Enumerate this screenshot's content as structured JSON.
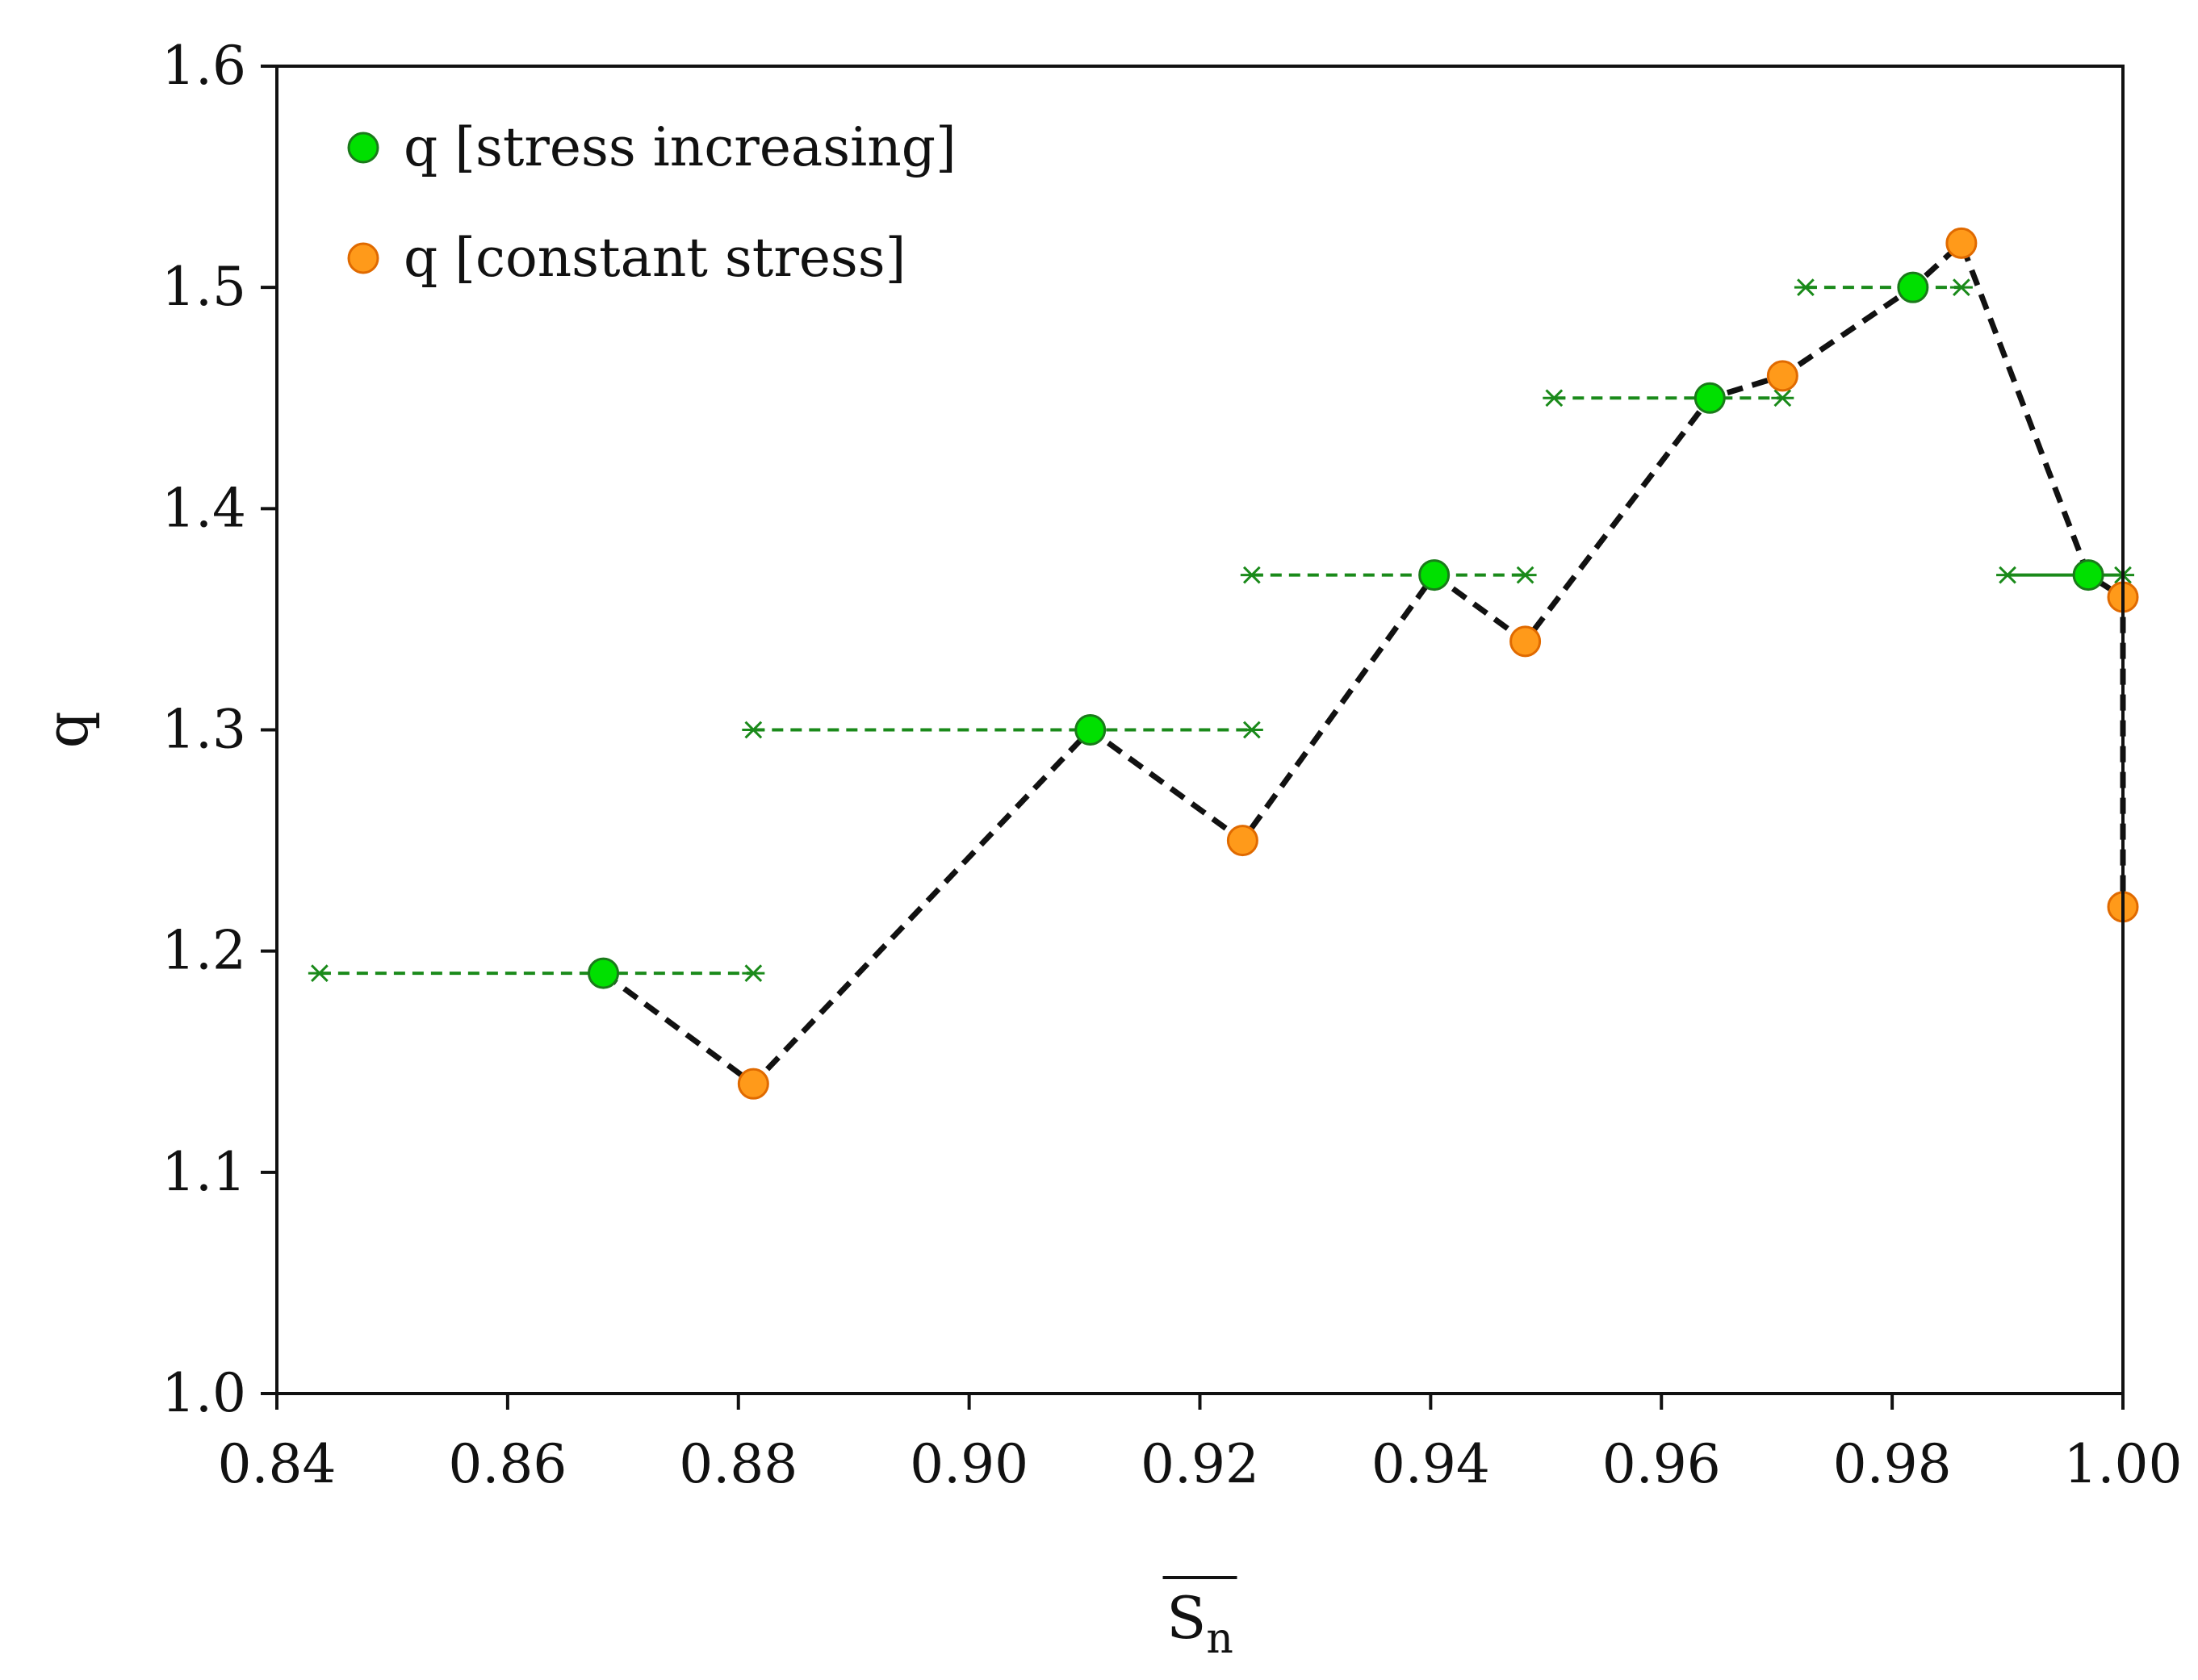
{
  "chart_data": {
    "type": "line",
    "xlabel": "S",
    "xlabel_subscript": "n",
    "ylabel": "q",
    "xlim": [
      0.84,
      1.0
    ],
    "ylim": [
      1.0,
      1.6
    ],
    "xticks": [
      "0.84",
      "0.86",
      "0.88",
      "0.90",
      "0.92",
      "0.94",
      "0.96",
      "0.98",
      "1.00"
    ],
    "yticks": [
      "1.0",
      "1.1",
      "1.2",
      "1.3",
      "1.4",
      "1.5",
      "1.6"
    ],
    "legend_position": "top-left",
    "legend": [
      {
        "label": "q [stress increasing]",
        "color": "#00e000",
        "edge": "#1a7a1a"
      },
      {
        "label": "q [constant stress]",
        "color": "#ff9a1a",
        "edge": "#e06a00"
      }
    ],
    "stress_increasing": [
      {
        "x": 0.8683,
        "y": 1.19
      },
      {
        "x": 0.9105,
        "y": 1.3
      },
      {
        "x": 0.9403,
        "y": 1.37
      },
      {
        "x": 0.9642,
        "y": 1.45
      },
      {
        "x": 0.9818,
        "y": 1.5
      },
      {
        "x": 0.997,
        "y": 1.37
      }
    ],
    "constant_stress": [
      {
        "x": 0.8813,
        "y": 1.14
      },
      {
        "x": 0.9237,
        "y": 1.25
      },
      {
        "x": 0.9482,
        "y": 1.34
      },
      {
        "x": 0.9705,
        "y": 1.46
      },
      {
        "x": 0.986,
        "y": 1.52
      },
      {
        "x": 1.0,
        "y": 1.36
      },
      {
        "x": 1.0,
        "y": 1.22
      }
    ],
    "connecting_line": [
      {
        "x": 0.8683,
        "y": 1.19
      },
      {
        "x": 0.8813,
        "y": 1.14
      },
      {
        "x": 0.9105,
        "y": 1.3
      },
      {
        "x": 0.9237,
        "y": 1.25
      },
      {
        "x": 0.9403,
        "y": 1.37
      },
      {
        "x": 0.9482,
        "y": 1.34
      },
      {
        "x": 0.9642,
        "y": 1.45
      },
      {
        "x": 0.9705,
        "y": 1.46
      },
      {
        "x": 0.9818,
        "y": 1.5
      },
      {
        "x": 0.986,
        "y": 1.52
      },
      {
        "x": 0.997,
        "y": 1.37
      },
      {
        "x": 1.0,
        "y": 1.36
      },
      {
        "x": 1.0,
        "y": 1.22
      }
    ],
    "ranges": [
      {
        "x_start": 0.8437,
        "x_end": 0.8813,
        "y": 1.19,
        "dash": true
      },
      {
        "x_start": 0.8813,
        "x_end": 0.9245,
        "y": 1.3,
        "dash": true
      },
      {
        "x_start": 0.9245,
        "x_end": 0.9482,
        "y": 1.37,
        "dash": true
      },
      {
        "x_start": 0.9507,
        "x_end": 0.9705,
        "y": 1.45,
        "dash": true
      },
      {
        "x_start": 0.9725,
        "x_end": 0.986,
        "y": 1.5,
        "dash": true
      },
      {
        "x_start": 0.99,
        "x_end": 1.0,
        "y": 1.37,
        "dash": false
      }
    ],
    "colors": {
      "line": "#111111",
      "range": "#1a8a1a"
    }
  }
}
